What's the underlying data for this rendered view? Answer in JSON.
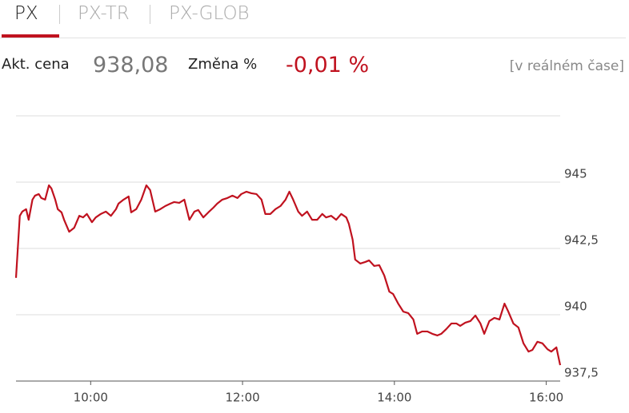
{
  "tabs": [
    "PX",
    "PX-TR",
    "PX-GLOB"
  ],
  "header": {
    "price_label": "Akt. cena",
    "price": "938,08",
    "change_label": "Změna %",
    "change": "-0,01 %",
    "note": "[v reálném čase]"
  },
  "chart_data": {
    "type": "line",
    "x": [
      541,
      544,
      546,
      549,
      551,
      554,
      556,
      559,
      561,
      564,
      567,
      569,
      572,
      574,
      577,
      579,
      583,
      587,
      591,
      594,
      597,
      601,
      604,
      608,
      612,
      616,
      620,
      622,
      626,
      630,
      632,
      636,
      640,
      644,
      647,
      651,
      655,
      659,
      663,
      666,
      670,
      674,
      678,
      682,
      685,
      689,
      693,
      697,
      700,
      704,
      708,
      712,
      716,
      719,
      723,
      727,
      731,
      735,
      738,
      742,
      746,
      750,
      754,
      757,
      760,
      764,
      767,
      771,
      775,
      779,
      783,
      786,
      790,
      794,
      798,
      802,
      804,
      807,
      809,
      813,
      817,
      820,
      824,
      828,
      832,
      836,
      839,
      843,
      847,
      851,
      855,
      858,
      862,
      866,
      870,
      874,
      877,
      881,
      885,
      889,
      892,
      896,
      900,
      904,
      908,
      911,
      915,
      919,
      923,
      927,
      930,
      934,
      938,
      942,
      946,
      949,
      953,
      957,
      961,
      964,
      968,
      971
    ],
    "series": [
      {
        "name": "PX",
        "color": "#c0121f",
        "values": [
          941.39,
          943.73,
          943.89,
          943.98,
          943.58,
          944.34,
          944.49,
          944.55,
          944.4,
          944.34,
          944.88,
          944.76,
          944.34,
          943.98,
          943.86,
          943.58,
          943.13,
          943.28,
          943.73,
          943.67,
          943.8,
          943.49,
          943.67,
          943.8,
          943.89,
          943.73,
          943.98,
          944.19,
          944.34,
          944.46,
          943.86,
          943.98,
          944.34,
          944.88,
          944.7,
          943.89,
          943.98,
          944.1,
          944.19,
          944.25,
          944.22,
          944.34,
          943.58,
          943.89,
          943.95,
          943.67,
          943.86,
          944.04,
          944.19,
          944.34,
          944.4,
          944.49,
          944.4,
          944.55,
          944.64,
          944.58,
          944.55,
          944.34,
          943.8,
          943.8,
          943.98,
          944.1,
          944.34,
          944.64,
          944.34,
          943.89,
          943.73,
          943.89,
          943.58,
          943.58,
          943.8,
          943.67,
          943.73,
          943.58,
          943.8,
          943.67,
          943.43,
          942.83,
          942.08,
          941.93,
          941.99,
          942.05,
          941.84,
          941.87,
          941.48,
          940.87,
          940.78,
          940.42,
          940.12,
          940.06,
          939.82,
          939.28,
          939.37,
          939.37,
          939.28,
          939.22,
          939.28,
          939.46,
          939.67,
          939.67,
          939.58,
          939.7,
          939.76,
          939.97,
          939.67,
          939.28,
          939.76,
          939.88,
          939.82,
          940.42,
          940.12,
          939.67,
          939.52,
          938.92,
          938.61,
          938.67,
          938.98,
          938.92,
          938.7,
          938.61,
          938.77,
          938.1
        ]
      }
    ],
    "xlim": [
      541,
      971
    ],
    "xticks": [
      {
        "value": 600,
        "label": "10:00"
      },
      {
        "value": 720,
        "label": "12:00"
      },
      {
        "value": 840,
        "label": "14:00"
      },
      {
        "value": 960,
        "label": "16:00"
      }
    ],
    "ylim": [
      937.5,
      947.5
    ],
    "yticks": [
      {
        "value": 937.5,
        "label": "937,5"
      },
      940,
      {
        "value": 942.5,
        "label": "942,5"
      },
      945
    ],
    "grid": true
  }
}
